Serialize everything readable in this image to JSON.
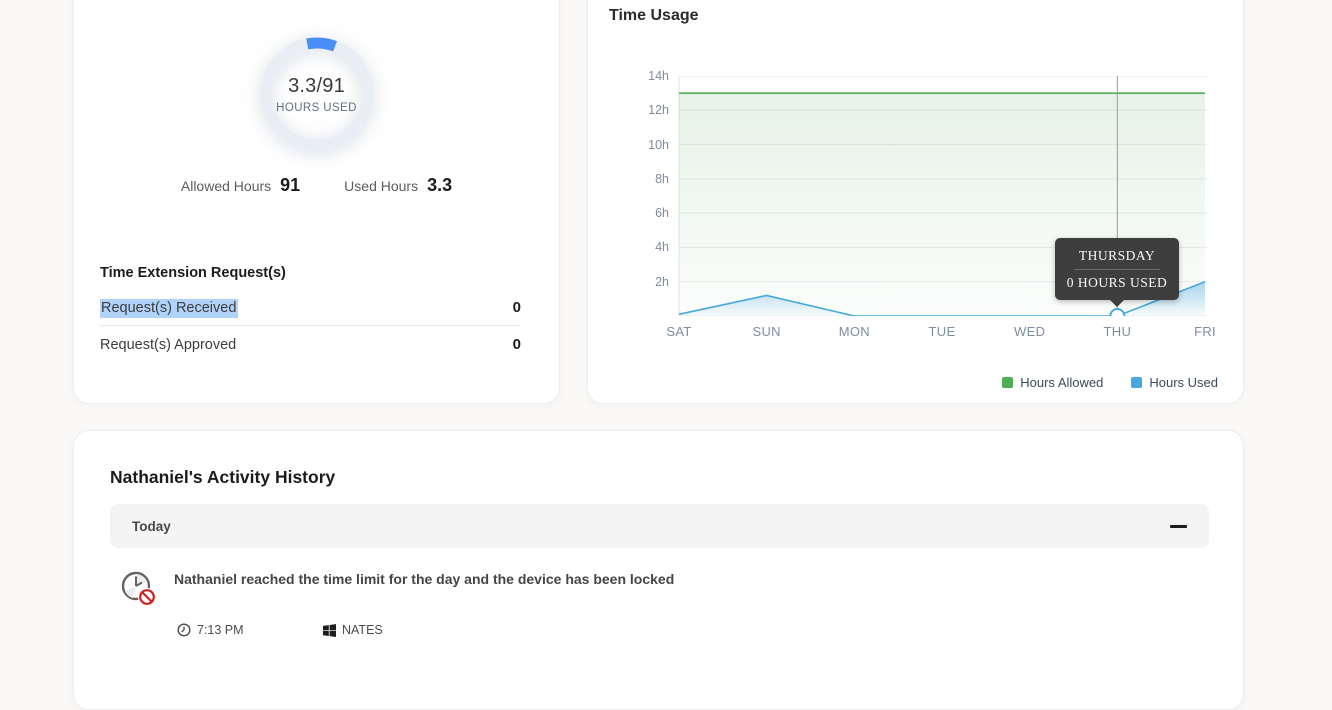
{
  "usage_summary": {
    "chart_data": {
      "type": "donut",
      "used": 3.3,
      "allowed": 91,
      "center_value": "3.3/91",
      "center_label": "HOURS USED",
      "arc_color": "#4a8df5",
      "track_color": "#e9eef5"
    },
    "allowed_label": "Allowed Hours",
    "allowed_value": "91",
    "used_label": "Used Hours",
    "used_value": "3.3",
    "extension_title": "Time Extension Request(s)",
    "rows": [
      {
        "label": "Request(s) Received",
        "value": "0",
        "text_selected": true
      },
      {
        "label": "Request(s) Approved",
        "value": "0",
        "text_selected": false
      }
    ]
  },
  "time_usage": {
    "title": "Time Usage",
    "tooltip": {
      "title": "THURSDAY",
      "value": "0 HOURS USED"
    },
    "chart_data": {
      "type": "line",
      "categories": [
        "SAT",
        "SUN",
        "MON",
        "TUE",
        "WED",
        "THU",
        "FRI"
      ],
      "series": [
        {
          "name": "Hours Allowed",
          "color": "#4fad54",
          "values": [
            13,
            13,
            13,
            13,
            13,
            13,
            13
          ]
        },
        {
          "name": "Hours Used",
          "color": "#45a8de",
          "values": [
            0.1,
            1.2,
            0,
            0,
            0,
            0,
            2
          ]
        }
      ],
      "y_ticks": [
        "14h",
        "12h",
        "10h",
        "8h",
        "6h",
        "4h",
        "2h"
      ],
      "ylim": [
        0,
        14
      ],
      "grid": true,
      "legend_position": "bottom-right",
      "active_point": {
        "series": "Hours Used",
        "category": "THU",
        "index": 5,
        "value": 0
      }
    }
  },
  "activity": {
    "title": "Nathaniel's Activity History",
    "group_label": "Today",
    "items": [
      {
        "text": "Nathaniel reached the time limit for the day and the device has been locked",
        "time": "7:13 PM",
        "device": "NATES"
      }
    ]
  }
}
